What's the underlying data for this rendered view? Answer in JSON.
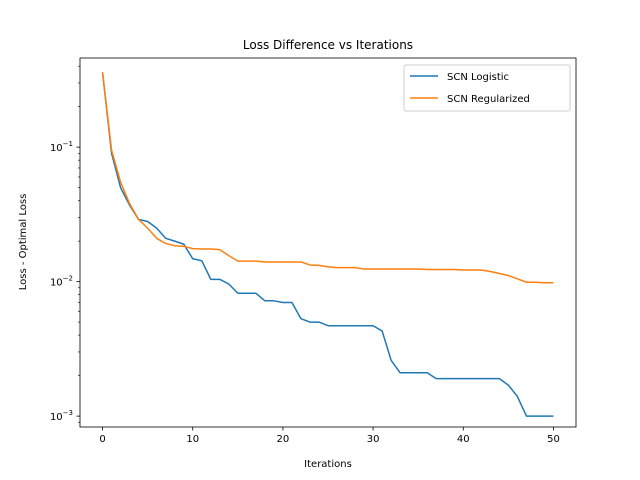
{
  "chart_data": {
    "type": "line",
    "title": "Loss Difference vs Iterations",
    "xlabel": "Iterations",
    "ylabel": "Loss - Optimal Loss",
    "yscale": "log",
    "xlim": [
      -2.5,
      52.5
    ],
    "ylim": [
      0.00083,
      0.46
    ],
    "grid": false,
    "legend_position": "top-right",
    "x_ticks": [
      0,
      10,
      20,
      30,
      40,
      50
    ],
    "y_ticks": [
      {
        "value": 0.1,
        "base": "10",
        "exp": "−1"
      },
      {
        "value": 0.01,
        "base": "10",
        "exp": "−2"
      },
      {
        "value": 0.001,
        "base": "10",
        "exp": "−3"
      }
    ],
    "x": [
      0,
      1,
      2,
      3,
      4,
      5,
      6,
      7,
      8,
      9,
      10,
      11,
      12,
      13,
      14,
      15,
      16,
      17,
      18,
      19,
      20,
      21,
      22,
      23,
      24,
      25,
      26,
      27,
      28,
      29,
      30,
      31,
      32,
      33,
      34,
      35,
      36,
      37,
      38,
      39,
      40,
      41,
      42,
      43,
      44,
      45,
      46,
      47,
      48,
      49,
      50
    ],
    "series": [
      {
        "name": "SCN Logistic",
        "color": "#1f77b4",
        "values": [
          0.36,
          0.09,
          0.05,
          0.037,
          0.029,
          0.028,
          0.025,
          0.021,
          0.02,
          0.019,
          0.0148,
          0.0143,
          0.0104,
          0.0104,
          0.0096,
          0.0082,
          0.0082,
          0.0082,
          0.0072,
          0.0072,
          0.007,
          0.007,
          0.0053,
          0.005,
          0.005,
          0.0047,
          0.0047,
          0.0047,
          0.0047,
          0.0047,
          0.0047,
          0.0043,
          0.0026,
          0.0021,
          0.0021,
          0.0021,
          0.0021,
          0.0019,
          0.0019,
          0.0019,
          0.0019,
          0.0019,
          0.0019,
          0.0019,
          0.0019,
          0.0017,
          0.0014,
          0.001,
          0.001,
          0.001,
          0.001
        ]
      },
      {
        "name": "SCN Regularized",
        "color": "#ff7f0e",
        "values": [
          0.36,
          0.095,
          0.055,
          0.038,
          0.029,
          0.025,
          0.021,
          0.0192,
          0.0185,
          0.0183,
          0.0176,
          0.0175,
          0.0175,
          0.0173,
          0.0156,
          0.0142,
          0.0142,
          0.0142,
          0.014,
          0.014,
          0.014,
          0.014,
          0.014,
          0.0133,
          0.0132,
          0.0129,
          0.0127,
          0.0127,
          0.0127,
          0.0124,
          0.0124,
          0.0124,
          0.0124,
          0.0124,
          0.0124,
          0.0124,
          0.0123,
          0.0123,
          0.0123,
          0.0123,
          0.0122,
          0.0122,
          0.0122,
          0.0119,
          0.0115,
          0.0111,
          0.0105,
          0.0099,
          0.0099,
          0.0098,
          0.0098
        ]
      }
    ]
  }
}
